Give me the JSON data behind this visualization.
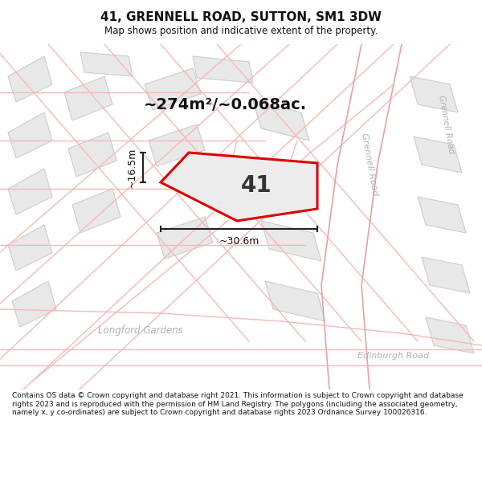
{
  "title": "41, GRENNELL ROAD, SUTTON, SM1 3DW",
  "subtitle": "Map shows position and indicative extent of the property.",
  "footer": "Contains OS data © Crown copyright and database right 2021. This information is subject to Crown copyright and database rights 2023 and is reproduced with the permission of HM Land Registry. The polygons (including the associated geometry, namely x, y co-ordinates) are subject to Crown copyright and database rights 2023 Ordnance Survey 100026316.",
  "area_label": "~274m²/~0.068ac.",
  "property_number": "41",
  "dim_vertical": "~16.5m",
  "dim_horizontal": "~30.6m",
  "background_color": "#ffffff",
  "map_bg": "#ffffff",
  "building_fill": "#e8e8e8",
  "building_edge": "#cccccc",
  "property_fill": "#ececec",
  "property_edge": "#dd0000",
  "road_line_color": "#f5b8b8",
  "road_label_color": "#b0b0b0",
  "dim_color": "#222222",
  "fig_width": 6.0,
  "fig_height": 6.25,
  "title_fs": 11,
  "subtitle_fs": 8.5,
  "footer_fs": 6.5,
  "area_fs": 14,
  "num_fs": 20,
  "dim_fs": 9,
  "road_lw": 1.0,
  "prop_lw": 2.2
}
